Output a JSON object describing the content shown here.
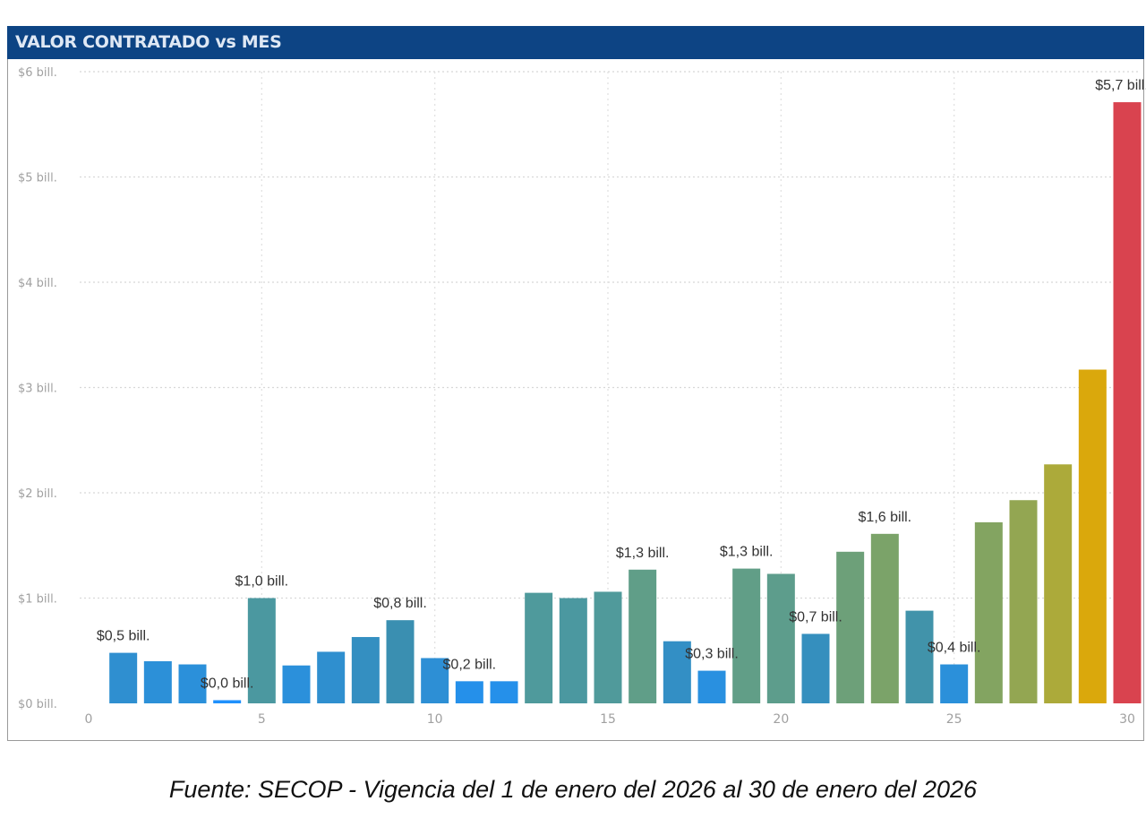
{
  "chart_data": {
    "type": "bar",
    "title": "VALOR CONTRATADO vs MES",
    "xlabel": "",
    "ylabel": "",
    "x": [
      1,
      2,
      3,
      4,
      5,
      6,
      7,
      8,
      9,
      10,
      11,
      12,
      13,
      14,
      15,
      16,
      17,
      18,
      19,
      20,
      21,
      22,
      23,
      24,
      25,
      26,
      27,
      28,
      29,
      30
    ],
    "values": [
      0.48,
      0.4,
      0.37,
      0.03,
      1.0,
      0.36,
      0.49,
      0.63,
      0.79,
      0.43,
      0.21,
      0.21,
      1.05,
      1.0,
      1.06,
      1.27,
      0.59,
      0.31,
      1.28,
      1.23,
      0.66,
      1.44,
      1.61,
      0.88,
      0.37,
      1.72,
      1.93,
      2.27,
      3.17,
      5.71
    ],
    "data_labels": {
      "1": "$0,5 bill.",
      "4": "$0,0 bill.",
      "5": "$1,0 bill.",
      "9": "$0,8 bill.",
      "11": "$0,2 bill.",
      "16": "$1,3 bill.",
      "18": "$0,3 bill.",
      "19": "$1,3 bill.",
      "21": "$0,7 bill.",
      "23": "$1,6 bill.",
      "25": "$0,4 bill.",
      "30": "$5,7 bill."
    },
    "unit": "bill.",
    "xlim": [
      0,
      30
    ],
    "ylim": [
      0,
      6
    ],
    "x_ticks": [
      "0",
      "5",
      "10",
      "15",
      "20",
      "25",
      "30"
    ],
    "y_ticks": [
      "$0 bill.",
      "$1 bill.",
      "$2 bill.",
      "$3 bill.",
      "$4 bill.",
      "$5 bill.",
      "$6 bill."
    ],
    "grid": true,
    "legend": "none",
    "color_scale": [
      {
        "value": 0,
        "color": "#1e90ff"
      },
      {
        "value": 0.8,
        "color": "#3a8fb0"
      },
      {
        "value": 1.05,
        "color": "#4f9a9c"
      },
      {
        "value": 1.6,
        "color": "#7aa36a"
      },
      {
        "value": 2.3,
        "color": "#aeaa38"
      },
      {
        "value": 3.2,
        "color": "#dba80a"
      },
      {
        "value": 5.7,
        "color": "#d9434f"
      }
    ]
  },
  "header_color": "#0d4484",
  "caption": "Fuente: SECOP - Vigencia del 1 de enero del 2026 al 30 de enero del 2026"
}
